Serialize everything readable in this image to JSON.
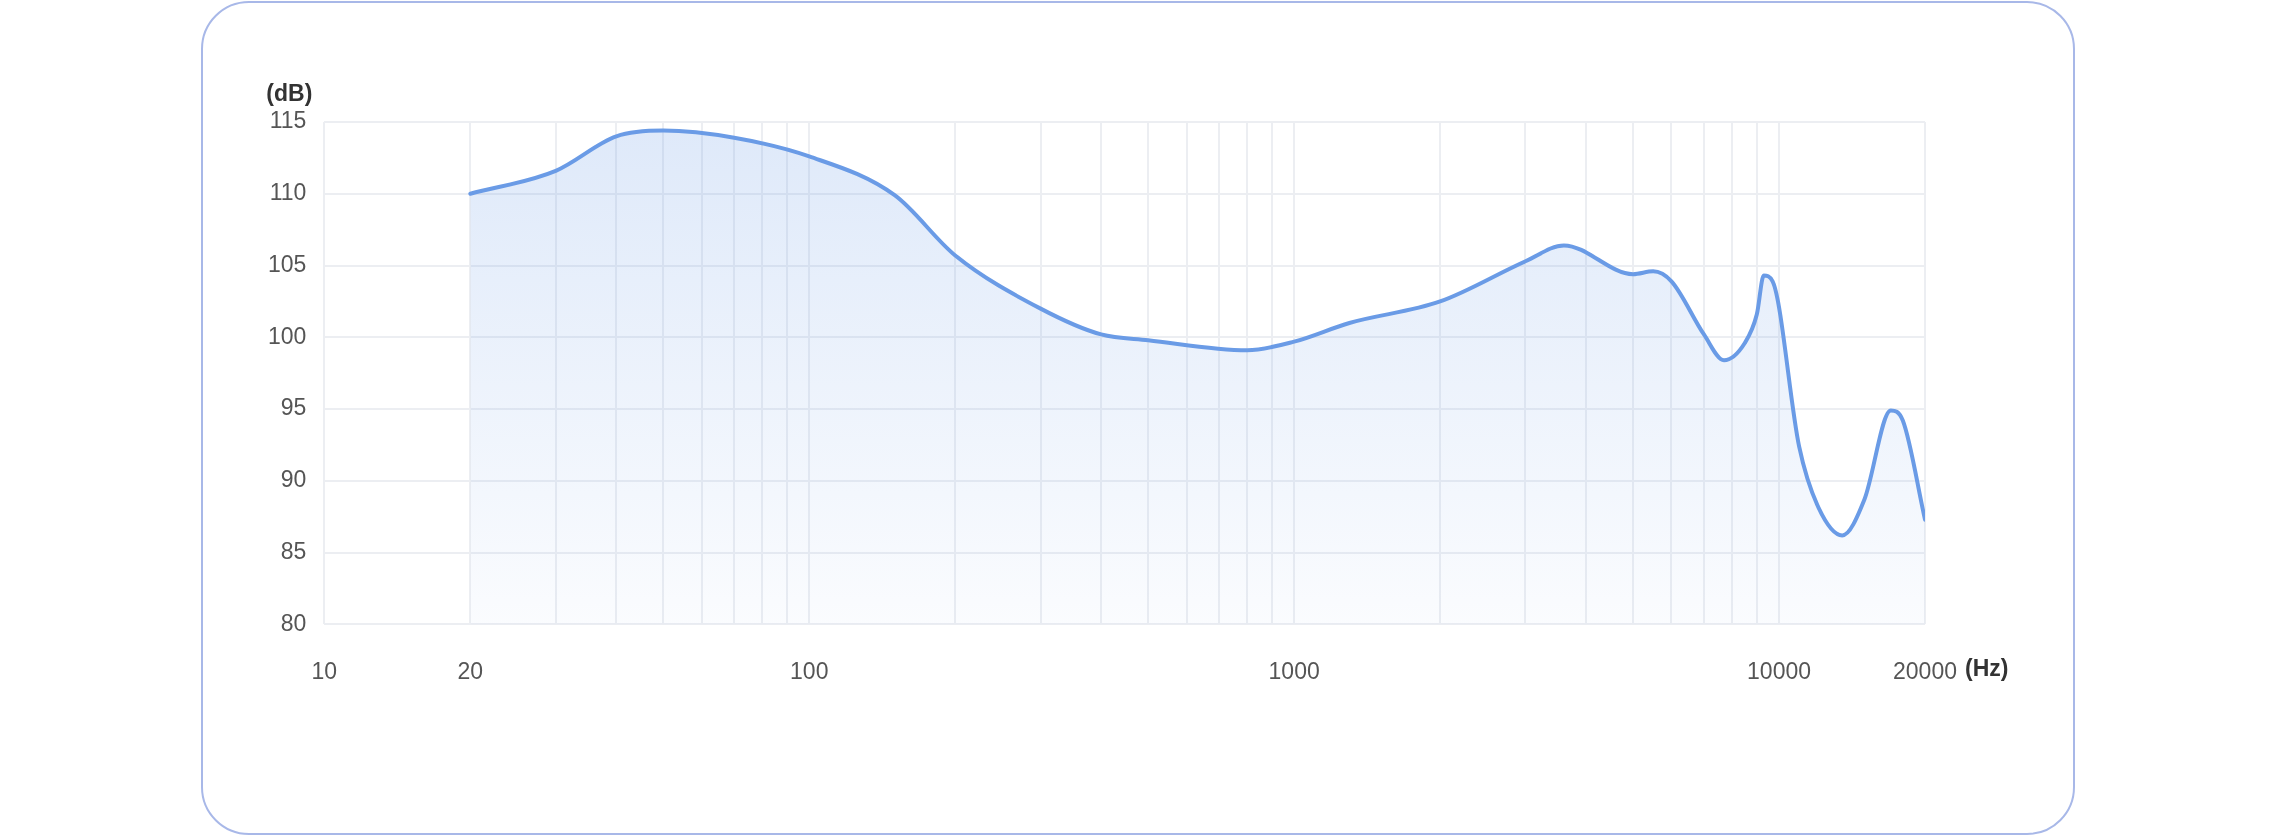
{
  "chart_data": {
    "type": "area",
    "xlabel": "(Hz)",
    "ylabel": "(dB)",
    "log": "x",
    "xlim": [
      10,
      20000
    ],
    "xticks": [
      10,
      20,
      {
        "value": 30,
        "label": null
      },
      {
        "value": 40,
        "label": null
      },
      {
        "value": 50,
        "label": null
      },
      {
        "value": 60,
        "label": null
      },
      {
        "value": 70,
        "label": null
      },
      {
        "value": 80,
        "label": null
      },
      {
        "value": 90,
        "label": null
      },
      100,
      {
        "value": 200,
        "label": null
      },
      {
        "value": 300,
        "label": null
      },
      {
        "value": 400,
        "label": null
      },
      {
        "value": 500,
        "label": null
      },
      {
        "value": 600,
        "label": null
      },
      {
        "value": 700,
        "label": null
      },
      {
        "value": 800,
        "label": null
      },
      {
        "value": 900,
        "label": null
      },
      1000,
      {
        "value": 2000,
        "label": null
      },
      {
        "value": 3000,
        "label": null
      },
      {
        "value": 4000,
        "label": null
      },
      {
        "value": 5000,
        "label": null
      },
      {
        "value": 6000,
        "label": null
      },
      {
        "value": 7000,
        "label": null
      },
      {
        "value": 8000,
        "label": null
      },
      {
        "value": 9000,
        "label": null
      },
      10000,
      20000
    ],
    "ylim": [
      80,
      115
    ],
    "yticks": [
      80,
      85,
      90,
      95,
      100,
      105,
      110,
      115
    ],
    "grid": true,
    "legend": false,
    "marker": "none",
    "line_style": "solid",
    "x": [
      20,
      30,
      40,
      50,
      70,
      100,
      150,
      200,
      300,
      400,
      500,
      800,
      1000,
      1300,
      2000,
      3000,
      3600,
      5000,
      5500,
      6000,
      7000,
      7700,
      8500,
      9000,
      9300,
      9700,
      11000,
      12000,
      13500,
      15000,
      17000,
      18000,
      20000
    ],
    "series": [
      {
        "color": "#6a9be6",
        "values": [
          110.0,
          111.6,
          114.0,
          114.4,
          113.9,
          112.6,
          109.9,
          105.7,
          102.0,
          100.2,
          99.8,
          99.1,
          99.7,
          101.0,
          102.5,
          105.3,
          106.4,
          104.4,
          104.6,
          103.9,
          100.2,
          98.4,
          99.6,
          101.6,
          104.3,
          103.9,
          92.4,
          88.3,
          86.2,
          88.7,
          94.9,
          94.2,
          87.3
        ]
      }
    ]
  }
}
